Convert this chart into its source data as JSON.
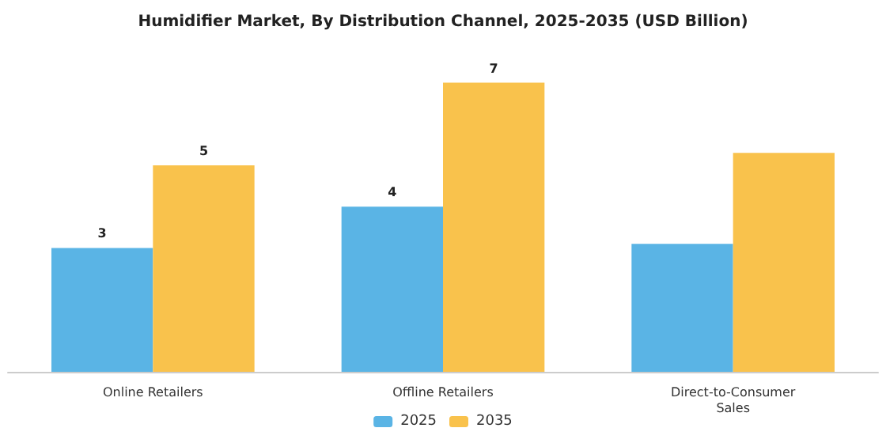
{
  "chart_data": {
    "type": "bar",
    "title": "Humidifier Market, By Distribution Channel, 2025-2035 (USD Billion)",
    "categories": [
      "Online Retailers",
      "Offline Retailers",
      "Direct-to-Consumer\nSales"
    ],
    "series": [
      {
        "name": "2025",
        "color": "#5ab4e5",
        "values": [
          3,
          4,
          3.1
        ],
        "value_labels": [
          "3",
          "4",
          null
        ]
      },
      {
        "name": "2035",
        "color": "#f9c24c",
        "values": [
          5,
          7,
          5.3
        ],
        "value_labels": [
          "5",
          "7",
          null
        ]
      }
    ],
    "legend": "bottom",
    "grid": false
  }
}
